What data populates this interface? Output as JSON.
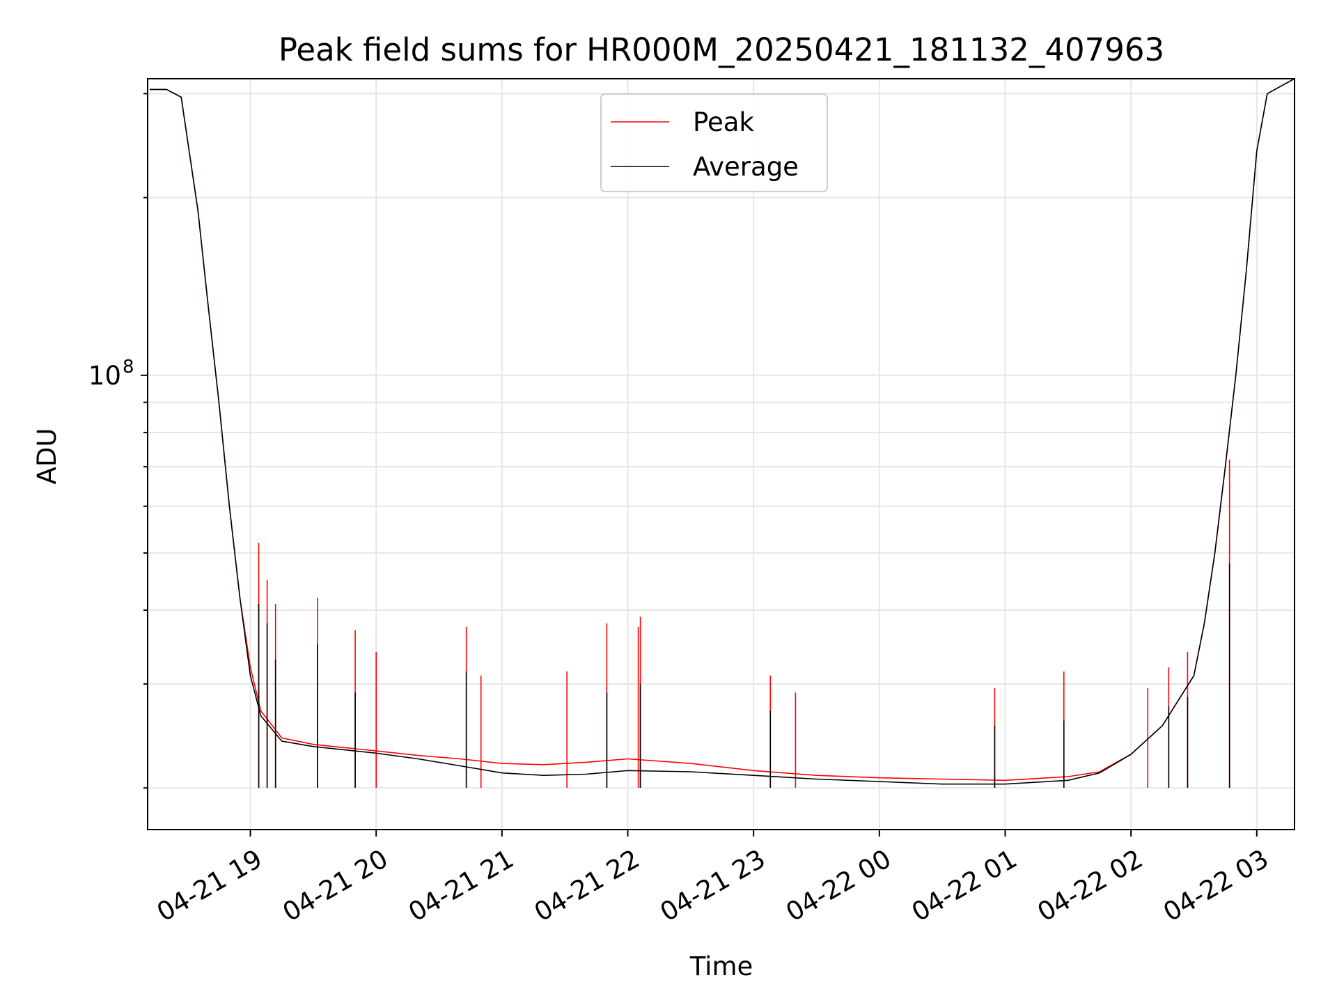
{
  "chart_data": {
    "type": "line",
    "title": "Peak field sums for HR000M_20250421_181132_407963",
    "xlabel": "Time",
    "ylabel": "ADU",
    "yscale": "log",
    "grid": true,
    "legend_position": "top-center",
    "xlim": [
      "2025-04-21 18:11",
      "2025-04-22 03:18"
    ],
    "ylim": [
      17000000,
      318000000
    ],
    "x_ticks": [
      "04-21 19",
      "04-21 20",
      "04-21 21",
      "04-21 22",
      "04-21 23",
      "04-22 00",
      "04-22 01",
      "04-22 02",
      "04-22 03"
    ],
    "y_ticks": [
      {
        "label": "10",
        "sup": "8",
        "value": 100000000
      }
    ],
    "series": [
      {
        "name": "Peak",
        "color": "#ff0000",
        "x": [
          "2025-04-21 18:12",
          "2025-04-21 18:20",
          "2025-04-21 18:27",
          "2025-04-21 18:35",
          "2025-04-21 18:40",
          "2025-04-21 18:45",
          "2025-04-21 18:50",
          "2025-04-21 18:55",
          "2025-04-21 19:00",
          "2025-04-21 19:05",
          "2025-04-21 19:15",
          "2025-04-21 19:30",
          "2025-04-21 19:45",
          "2025-04-21 20:00",
          "2025-04-21 20:20",
          "2025-04-21 20:40",
          "2025-04-21 21:00",
          "2025-04-21 21:20",
          "2025-04-21 21:40",
          "2025-04-21 22:00",
          "2025-04-21 22:30",
          "2025-04-21 23:00",
          "2025-04-21 23:30",
          "2025-04-22 00:00",
          "2025-04-22 00:30",
          "2025-04-22 01:00",
          "2025-04-22 01:30",
          "2025-04-22 01:45",
          "2025-04-22 02:00",
          "2025-04-22 02:15",
          "2025-04-22 02:30",
          "2025-04-22 02:35",
          "2025-04-22 02:40",
          "2025-04-22 02:45",
          "2025-04-22 02:50",
          "2025-04-22 02:55",
          "2025-04-22 03:00",
          "2025-04-22 03:05",
          "2025-04-22 03:18"
        ],
        "values": [
          305000000,
          305000000,
          296000000,
          190000000,
          130000000,
          90000000,
          60000000,
          42000000,
          32000000,
          27000000,
          24300000,
          23700000,
          23400000,
          23100000,
          22700000,
          22400000,
          22000000,
          21900000,
          22100000,
          22400000,
          22000000,
          21400000,
          21000000,
          20800000,
          20700000,
          20600000,
          20900000,
          21300000,
          22800000,
          25500000,
          31000000,
          38000000,
          50000000,
          70000000,
          100000000,
          150000000,
          240000000,
          300000000,
          318000000
        ],
        "spikes": [
          {
            "x": "2025-04-21 19:04",
            "value": 52000000
          },
          {
            "x": "2025-04-21 19:08",
            "value": 45000000
          },
          {
            "x": "2025-04-21 19:12",
            "value": 41000000
          },
          {
            "x": "2025-04-21 19:32",
            "value": 42000000
          },
          {
            "x": "2025-04-21 19:50",
            "value": 37000000
          },
          {
            "x": "2025-04-21 20:00",
            "value": 34000000
          },
          {
            "x": "2025-04-21 20:43",
            "value": 37500000
          },
          {
            "x": "2025-04-21 20:50",
            "value": 31000000
          },
          {
            "x": "2025-04-21 21:31",
            "value": 31500000
          },
          {
            "x": "2025-04-21 21:50",
            "value": 38000000
          },
          {
            "x": "2025-04-21 22:05",
            "value": 37500000
          },
          {
            "x": "2025-04-21 22:06",
            "value": 39000000
          },
          {
            "x": "2025-04-21 23:08",
            "value": 31000000
          },
          {
            "x": "2025-04-21 23:20",
            "value": 29000000
          },
          {
            "x": "2025-04-22 00:55",
            "value": 29500000
          },
          {
            "x": "2025-04-22 01:28",
            "value": 31500000
          },
          {
            "x": "2025-04-22 02:08",
            "value": 29500000
          },
          {
            "x": "2025-04-22 02:18",
            "value": 32000000
          },
          {
            "x": "2025-04-22 02:27",
            "value": 34000000
          },
          {
            "x": "2025-04-22 02:47",
            "value": 72000000
          }
        ]
      },
      {
        "name": "Average",
        "color": "#000000",
        "x": [
          "2025-04-21 18:12",
          "2025-04-21 18:20",
          "2025-04-21 18:27",
          "2025-04-21 18:35",
          "2025-04-21 18:40",
          "2025-04-21 18:45",
          "2025-04-21 18:50",
          "2025-04-21 18:55",
          "2025-04-21 19:00",
          "2025-04-21 19:05",
          "2025-04-21 19:15",
          "2025-04-21 19:30",
          "2025-04-21 19:45",
          "2025-04-21 20:00",
          "2025-04-21 20:20",
          "2025-04-21 20:40",
          "2025-04-21 21:00",
          "2025-04-21 21:20",
          "2025-04-21 21:40",
          "2025-04-21 22:00",
          "2025-04-21 22:30",
          "2025-04-21 23:00",
          "2025-04-21 23:30",
          "2025-04-22 00:00",
          "2025-04-22 00:30",
          "2025-04-22 01:00",
          "2025-04-22 01:30",
          "2025-04-22 01:45",
          "2025-04-22 02:00",
          "2025-04-22 02:15",
          "2025-04-22 02:30",
          "2025-04-22 02:35",
          "2025-04-22 02:40",
          "2025-04-22 02:45",
          "2025-04-22 02:50",
          "2025-04-22 02:55",
          "2025-04-22 03:00",
          "2025-04-22 03:05",
          "2025-04-22 03:18"
        ],
        "values": [
          305000000,
          305000000,
          296000000,
          190000000,
          130000000,
          90000000,
          60000000,
          42000000,
          31000000,
          26500000,
          24000000,
          23500000,
          23200000,
          22900000,
          22400000,
          21800000,
          21200000,
          21000000,
          21100000,
          21400000,
          21300000,
          21000000,
          20700000,
          20500000,
          20300000,
          20300000,
          20600000,
          21200000,
          22800000,
          25500000,
          31000000,
          38000000,
          50000000,
          70000000,
          100000000,
          150000000,
          240000000,
          300000000,
          318000000
        ],
        "spikes": [
          {
            "x": "2025-04-21 19:04",
            "value": 41000000
          },
          {
            "x": "2025-04-21 19:08",
            "value": 38000000
          },
          {
            "x": "2025-04-21 19:12",
            "value": 33000000
          },
          {
            "x": "2025-04-21 19:32",
            "value": 35000000
          },
          {
            "x": "2025-04-21 19:50",
            "value": 29000000
          },
          {
            "x": "2025-04-21 20:43",
            "value": 31500000
          },
          {
            "x": "2025-04-21 21:50",
            "value": 29000000
          },
          {
            "x": "2025-04-21 22:06",
            "value": 30000000
          },
          {
            "x": "2025-04-21 23:08",
            "value": 27000000
          },
          {
            "x": "2025-04-22 00:55",
            "value": 25500000
          },
          {
            "x": "2025-04-22 01:28",
            "value": 26000000
          },
          {
            "x": "2025-04-22 02:18",
            "value": 27500000
          },
          {
            "x": "2025-04-22 02:27",
            "value": 28500000
          },
          {
            "x": "2025-04-22 02:47",
            "value": 48000000
          }
        ]
      }
    ]
  }
}
